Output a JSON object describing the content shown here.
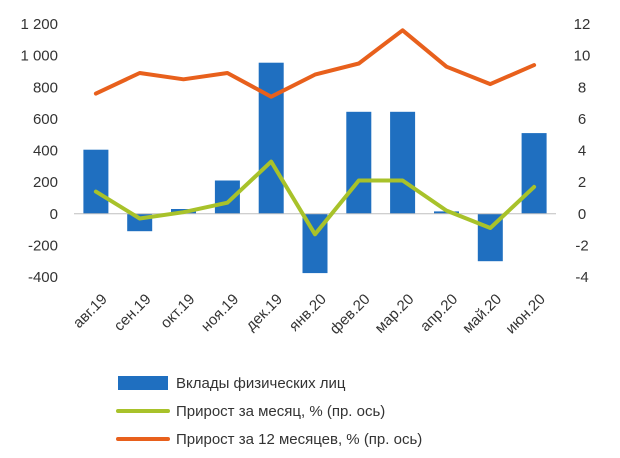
{
  "chart_data": {
    "type": "bar+line",
    "categories": [
      "авг.19",
      "сен.19",
      "окт.19",
      "ноя.19",
      "дек.19",
      "янв.20",
      "фев.20",
      "мар.20",
      "апр.20",
      "май.20",
      "июн.20"
    ],
    "series": [
      {
        "name": "Вклады физических лиц",
        "type": "bar",
        "axis": "left",
        "color": "#1f6fc0",
        "values": [
          405,
          -110,
          30,
          210,
          955,
          -375,
          645,
          645,
          15,
          -300,
          510
        ]
      },
      {
        "name": "Прирост за месяц, % (пр. ось)",
        "type": "line",
        "axis": "right",
        "color": "#a8c22a",
        "values": [
          1.4,
          -0.3,
          0.1,
          0.7,
          3.3,
          -1.3,
          2.1,
          2.1,
          0.2,
          -0.9,
          1.7
        ]
      },
      {
        "name": "Прирост за 12 месяцев, % (пр. ось)",
        "type": "line",
        "axis": "right",
        "color": "#e8601c",
        "values": [
          7.6,
          8.9,
          8.5,
          8.9,
          7.4,
          8.8,
          9.5,
          11.6,
          9.3,
          8.2,
          9.4
        ]
      }
    ],
    "left_axis": {
      "min": -400,
      "max": 1200,
      "step": 200,
      "tick_labels": [
        "-400",
        "-200",
        "0",
        "200",
        "400",
        "600",
        "800",
        "1 000",
        "1 200"
      ]
    },
    "right_axis": {
      "min": -4,
      "max": 12,
      "step": 2,
      "tick_labels": [
        "-4",
        "-2",
        "0",
        "2",
        "4",
        "6",
        "8",
        "10",
        "12"
      ]
    },
    "grid": false,
    "legend_position": "bottom"
  }
}
